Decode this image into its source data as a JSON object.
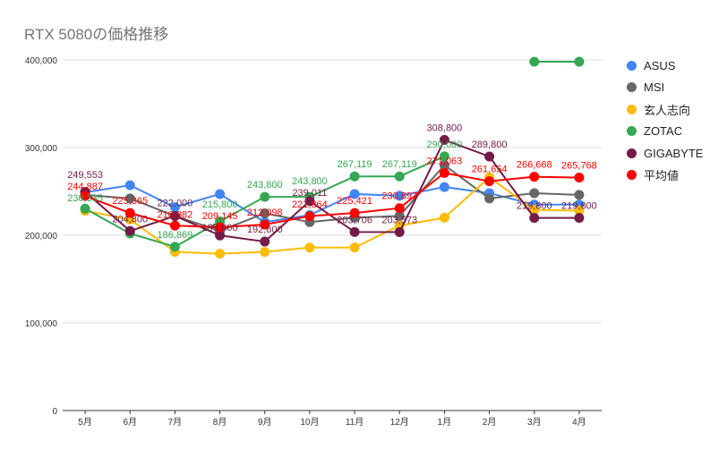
{
  "chart_data": {
    "type": "line",
    "title": "RTX 5080の価格推移",
    "xlabel": "",
    "ylabel": "",
    "categories": [
      "5月",
      "6月",
      "7月",
      "8月",
      "9月",
      "10月",
      "11月",
      "12月",
      "1月",
      "2月",
      "3月",
      "4月"
    ],
    "ylim": [
      0,
      400000
    ],
    "yticks": [
      "0",
      "100,000",
      "200,000",
      "300,000",
      "400,000"
    ],
    "ytick_values": [
      0,
      100000,
      200000,
      300000,
      400000
    ],
    "grid": true,
    "legend": "right",
    "series": [
      {
        "name": "ASUS",
        "color": "#4285f4",
        "values": [
          249000,
          257000,
          232000,
          247000,
          215000,
          223000,
          247000,
          245000,
          255000,
          248000,
          235000,
          235000
        ],
        "labels": [
          null,
          null,
          null,
          null,
          null,
          null,
          null,
          null,
          null,
          null,
          null,
          null
        ]
      },
      {
        "name": "MSI",
        "color": "#666666",
        "values": [
          246000,
          242000,
          222000,
          205000,
          225000,
          215000,
          220000,
          222000,
          280000,
          242000,
          248000,
          246000
        ],
        "labels": [
          null,
          null,
          null,
          null,
          null,
          null,
          null,
          null,
          null,
          null,
          null,
          null
        ]
      },
      {
        "name": "玄人志向",
        "color": "#fbbc04",
        "values": [
          228000,
          218000,
          181000,
          179000,
          181000,
          186000,
          186000,
          211000,
          220000,
          266000,
          229000,
          228000
        ],
        "labels": [
          null,
          null,
          null,
          null,
          null,
          null,
          null,
          null,
          null,
          null,
          null,
          null
        ]
      },
      {
        "name": "ZOTAC",
        "color": "#34a853",
        "values": [
          230335,
          202000,
          186869,
          215800,
          243800,
          243800,
          267119,
          267119,
          290000,
          null,
          398000,
          398000
        ],
        "labels": [
          "230,335",
          null,
          "186,869",
          "215,800",
          "243,800",
          "243,800",
          "267,119",
          "267,119",
          "290,000",
          null,
          null,
          null
        ]
      },
      {
        "name": "GIGABYTE",
        "color": "#741b47",
        "values": [
          249553,
          204800,
          222000,
          199800,
          192800,
          239011,
          203706,
          203573,
          308800,
          289800,
          219800,
          219800
        ],
        "labels": [
          "249,553",
          "204,800",
          "222,000",
          "199,800",
          "192,800",
          "239,011",
          "203,706",
          "203,573",
          "308,800",
          "289,800",
          "219,800",
          "219,800"
        ]
      },
      {
        "name": "平均値",
        "color": "#ff0000",
        "values": [
          244887,
          225365,
          210982,
          209145,
          212098,
          221864,
          225421,
          230897,
          271063,
          261654,
          266668,
          265768
        ],
        "labels": [
          "244,887",
          "225,365",
          "210,982",
          "209,145",
          "212,098",
          "221,864",
          "225,421",
          "230,897",
          "271,063",
          "261,654",
          "266,668",
          "265,768"
        ]
      }
    ]
  }
}
